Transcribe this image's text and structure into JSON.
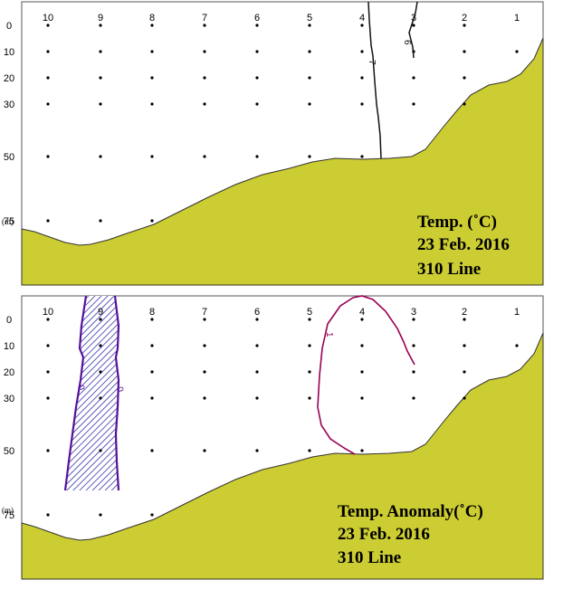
{
  "chart_data": [
    {
      "type": "contour-section",
      "stations": [
        "10",
        "9",
        "8",
        "7",
        "6",
        "5",
        "4",
        "3",
        "2",
        "1"
      ],
      "depth_ticks": [
        "0",
        "10",
        "20",
        "30",
        "50",
        "75"
      ],
      "depth_unit": "(m)",
      "legend": [
        "Temp. (˚C)",
        "23 Feb. 2016",
        "310 Line"
      ],
      "contours": [
        {
          "label": "7",
          "color": "#111111"
        },
        {
          "label": "6",
          "color": "#111111"
        }
      ],
      "terrain_color": "#cccc33"
    },
    {
      "type": "contour-section",
      "stations": [
        "10",
        "9",
        "8",
        "7",
        "6",
        "5",
        "4",
        "3",
        "2",
        "1"
      ],
      "depth_ticks": [
        "0",
        "10",
        "20",
        "30",
        "50",
        "75"
      ],
      "depth_unit": "(m)",
      "legend": [
        "Temp. Anomaly(˚C)",
        "23 Feb. 2016",
        "310 Line"
      ],
      "contours": [
        {
          "label": "1",
          "color": "#990055"
        },
        {
          "label": "0",
          "color": "#551199"
        },
        {
          "label": "0",
          "color": "#551199"
        }
      ],
      "shaded_region_color": "#3333aa",
      "terrain_color": "#cccc33"
    }
  ]
}
